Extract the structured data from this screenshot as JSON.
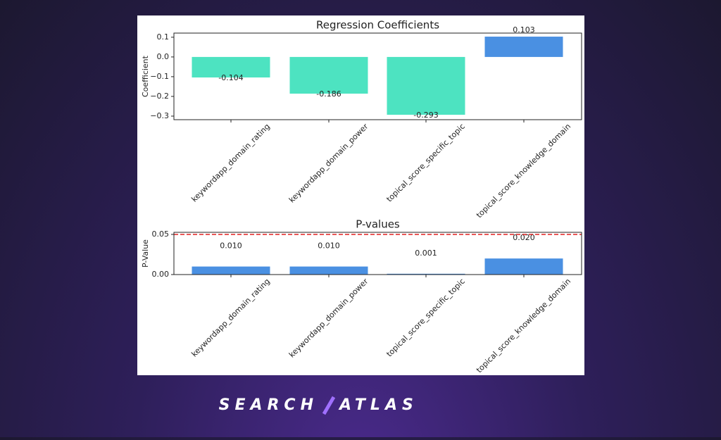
{
  "chart_data": [
    {
      "type": "bar",
      "title": "Regression Coefficients",
      "y_label": "Coefficient",
      "categories": [
        "keywordapp_domain_rating",
        "keywordapp_domain_power",
        "topical_score_specific_topic",
        "topical_score_knowledge_domain"
      ],
      "values": [
        -0.104,
        -0.186,
        -0.293,
        0.103
      ],
      "colors": [
        "#4de3c1",
        "#4de3c1",
        "#4de3c1",
        "#4a90e2"
      ],
      "ylim": [
        -0.318,
        0.121
      ],
      "yticks": [
        {
          "value": 0.1,
          "label": "0.1"
        },
        {
          "value": 0.0,
          "label": "0.0"
        },
        {
          "value": -0.1,
          "label": "−0.1"
        },
        {
          "value": -0.2,
          "label": "−0.2"
        },
        {
          "value": -0.3,
          "label": "−0.3"
        }
      ]
    },
    {
      "type": "bar",
      "title": "P-values",
      "y_label": "P-Value",
      "categories": [
        "keywordapp_domain_rating",
        "keywordapp_domain_power",
        "topical_score_specific_topic",
        "topical_score_knowledge_domain"
      ],
      "values": [
        0.01,
        0.01,
        0.001,
        0.02
      ],
      "value_labels": [
        "0.010",
        "0.010",
        "0.001",
        "0.020"
      ],
      "colors": [
        "#4a90e2",
        "#4a90e2",
        "#4a90e2",
        "#4a90e2"
      ],
      "threshold": 0.05,
      "threshold_color": "#e02020",
      "ylim": [
        0,
        0.0526
      ],
      "yticks": [
        {
          "value": 0.05,
          "label": "0.05"
        },
        {
          "value": 0,
          "label": "0.00"
        }
      ]
    }
  ],
  "brand": [
    "SEARCH",
    "ATLAS"
  ]
}
